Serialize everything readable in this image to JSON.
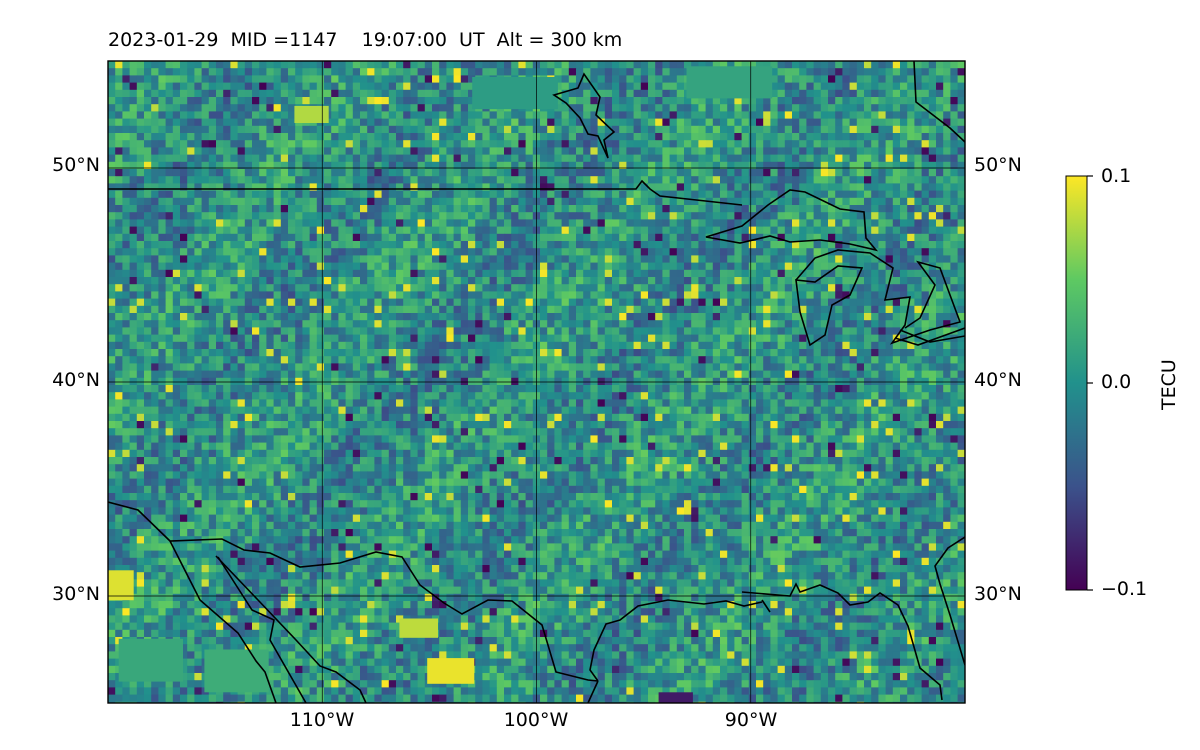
{
  "title": {
    "date": "2023-01-29",
    "mid": "MID =1147",
    "time": "19:07:00  UT",
    "alt": "Alt = 300 km"
  },
  "map": {
    "lon_range": [
      -120,
      -80
    ],
    "lat_range": [
      25,
      55
    ],
    "gridlines": true,
    "lat_ticks": [
      {
        "value": 50,
        "label": "50°N"
      },
      {
        "value": 40,
        "label": "40°N"
      },
      {
        "value": 30,
        "label": "30°N"
      }
    ],
    "lon_ticks": [
      {
        "value": -110,
        "label": "110°W"
      },
      {
        "value": -100,
        "label": "100°W"
      },
      {
        "value": -90,
        "label": "90°W"
      }
    ],
    "colormap": "viridis",
    "colors": {
      "low": "#440154",
      "mid": "#21918c",
      "high": "#fde725"
    }
  },
  "colorbar": {
    "label": "TECU",
    "ticks": [
      {
        "value": 0.1,
        "label": "0.1"
      },
      {
        "value": 0.0,
        "label": "0.0"
      },
      {
        "value": -0.1,
        "label": "−0.1"
      }
    ],
    "range": [
      -0.1,
      0.1
    ]
  }
}
